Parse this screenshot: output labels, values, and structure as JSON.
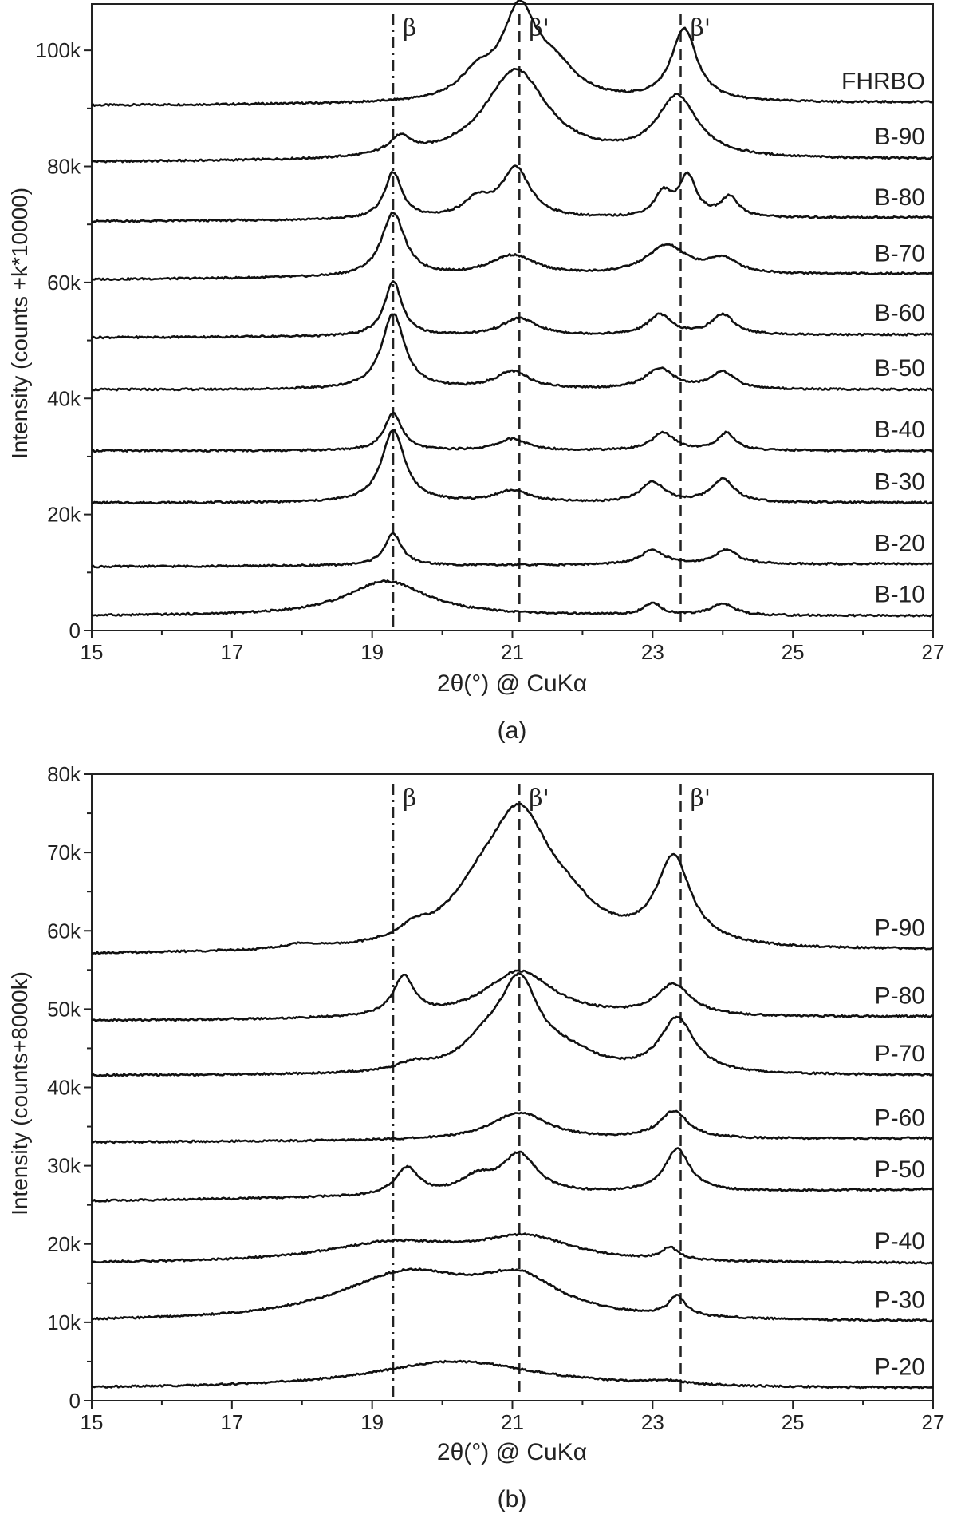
{
  "chart_data": [
    {
      "type": "line",
      "panel_label": "(a)",
      "xlabel": "2θ(°) @ CuKα",
      "ylabel": "Intensity (counts +k*10000)",
      "xlim": [
        15,
        27
      ],
      "ylim": [
        0,
        108000
      ],
      "x_ticks": [
        15,
        17,
        19,
        21,
        23,
        25,
        27
      ],
      "y_ticks": [
        0,
        20000,
        40000,
        60000,
        80000,
        100000
      ],
      "y_tick_labels": [
        "0",
        "20k",
        "40k",
        "60k",
        "80k",
        "100k"
      ],
      "grid": false,
      "reference_lines": [
        {
          "x": 19.3,
          "style": "dashdot",
          "label": "β"
        },
        {
          "x": 21.1,
          "style": "dashed",
          "label": "β'"
        },
        {
          "x": 23.4,
          "style": "dashed",
          "label": "β'"
        }
      ],
      "series": [
        {
          "name": "FHRBO",
          "baseline": 90500,
          "end": 91000,
          "slope": 0,
          "peaks": [
            [
              20.5,
              4000,
              0.3
            ],
            [
              21.1,
              15000,
              0.3
            ],
            [
              21.6,
              5000,
              0.4
            ],
            [
              23.45,
              12500,
              0.22
            ]
          ]
        },
        {
          "name": "B-90",
          "baseline": 80700,
          "end": 81200,
          "slope": 0,
          "peaks": [
            [
              19.4,
              3000,
              0.2
            ],
            [
              21.05,
              15500,
              0.55
            ],
            [
              23.35,
              10500,
              0.35
            ]
          ]
        },
        {
          "name": "B-80",
          "baseline": 70500,
          "end": 71200,
          "slope": 0,
          "peaks": [
            [
              19.3,
              8000,
              0.15
            ],
            [
              20.5,
              3000,
              0.25
            ],
            [
              21.05,
              8500,
              0.25
            ],
            [
              23.15,
              4000,
              0.15
            ],
            [
              23.5,
              7000,
              0.15
            ],
            [
              24.1,
              3500,
              0.15
            ]
          ]
        },
        {
          "name": "B-70",
          "baseline": 60500,
          "end": 61500,
          "slope": 0,
          "peaks": [
            [
              19.3,
              11000,
              0.2
            ],
            [
              21.0,
              3500,
              0.4
            ],
            [
              23.2,
              5000,
              0.35
            ],
            [
              24.0,
              2500,
              0.25
            ]
          ]
        },
        {
          "name": "B-60",
          "baseline": 50500,
          "end": 51000,
          "slope": 0,
          "peaks": [
            [
              19.3,
              9500,
              0.15
            ],
            [
              21.1,
              3000,
              0.3
            ],
            [
              23.1,
              3500,
              0.2
            ],
            [
              24.0,
              3500,
              0.2
            ]
          ]
        },
        {
          "name": "B-50",
          "baseline": 41500,
          "end": 41500,
          "slope": 0,
          "peaks": [
            [
              19.3,
              13000,
              0.2
            ],
            [
              21.0,
              3000,
              0.3
            ],
            [
              23.1,
              3500,
              0.25
            ],
            [
              24.0,
              3000,
              0.2
            ]
          ]
        },
        {
          "name": "B-40",
          "baseline": 31000,
          "end": 31000,
          "slope": 0,
          "peaks": [
            [
              19.3,
              6500,
              0.15
            ],
            [
              21.0,
              2000,
              0.25
            ],
            [
              23.15,
              3000,
              0.2
            ],
            [
              24.05,
              3000,
              0.15
            ]
          ]
        },
        {
          "name": "B-30",
          "baseline": 22000,
          "end": 22000,
          "slope": 0,
          "peaks": [
            [
              19.3,
              12500,
              0.2
            ],
            [
              21.0,
              2000,
              0.3
            ],
            [
              23.0,
              3500,
              0.2
            ],
            [
              24.0,
              4000,
              0.2
            ]
          ]
        },
        {
          "name": "B-20",
          "baseline": 11000,
          "end": 11500,
          "slope": 0,
          "peaks": [
            [
              19.3,
              5500,
              0.15
            ],
            [
              23.0,
              2500,
              0.2
            ],
            [
              24.05,
              2500,
              0.2
            ]
          ]
        },
        {
          "name": "B-10",
          "baseline": 2500,
          "end": 2500,
          "slope": 0,
          "peaks": [
            [
              19.2,
              6000,
              0.7
            ],
            [
              23.0,
              2000,
              0.15
            ],
            [
              24.0,
              2000,
              0.2
            ]
          ]
        }
      ]
    },
    {
      "type": "line",
      "panel_label": "(b)",
      "xlabel": "2θ(°) @ CuKα",
      "ylabel": "Intensity (counts+8000k)",
      "xlim": [
        15,
        27
      ],
      "ylim": [
        0,
        80000
      ],
      "x_ticks": [
        15,
        17,
        19,
        21,
        23,
        25,
        27
      ],
      "y_ticks": [
        0,
        10000,
        20000,
        30000,
        40000,
        50000,
        60000,
        70000,
        80000
      ],
      "y_tick_labels": [
        "0",
        "10k",
        "20k",
        "30k",
        "40k",
        "50k",
        "60k",
        "70k",
        "80k"
      ],
      "grid": false,
      "reference_lines": [
        {
          "x": 19.3,
          "style": "dashdot",
          "label": "β"
        },
        {
          "x": 21.1,
          "style": "dashed",
          "label": "β'"
        },
        {
          "x": 23.4,
          "style": "dashed",
          "label": "β'"
        }
      ],
      "series": [
        {
          "name": "P-90",
          "baseline": 57000,
          "end": 57500,
          "slope": 0,
          "peaks": [
            [
              18.0,
              600,
              0.3
            ],
            [
              19.6,
              1500,
              0.25
            ],
            [
              20.5,
              4000,
              0.5
            ],
            [
              21.1,
              16000,
              0.55
            ],
            [
              21.8,
              3000,
              0.5
            ],
            [
              23.3,
              11000,
              0.3
            ]
          ]
        },
        {
          "name": "P-80",
          "baseline": 48500,
          "end": 49000,
          "slope": 0,
          "peaks": [
            [
              19.45,
              5000,
              0.18
            ],
            [
              21.1,
              6000,
              0.6
            ],
            [
              23.3,
              4000,
              0.3
            ]
          ]
        },
        {
          "name": "P-70",
          "baseline": 41500,
          "end": 41500,
          "slope": 0,
          "peaks": [
            [
              19.6,
              1000,
              0.3
            ],
            [
              20.6,
              3000,
              0.4
            ],
            [
              21.1,
              11000,
              0.35
            ],
            [
              21.8,
              2000,
              0.5
            ],
            [
              23.35,
              7000,
              0.3
            ]
          ]
        },
        {
          "name": "P-60",
          "baseline": 33000,
          "end": 33500,
          "slope": 0,
          "peaks": [
            [
              21.1,
              3500,
              0.5
            ],
            [
              23.3,
              3500,
              0.25
            ]
          ]
        },
        {
          "name": "P-50",
          "baseline": 25500,
          "end": 27000,
          "slope": 0,
          "peaks": [
            [
              19.5,
              3500,
              0.2
            ],
            [
              20.5,
              2000,
              0.3
            ],
            [
              21.1,
              5000,
              0.3
            ],
            [
              23.35,
              5500,
              0.22
            ]
          ]
        },
        {
          "name": "P-40",
          "baseline": 17500,
          "end": 17500,
          "slope": 0,
          "peaks": [
            [
              19.3,
              2500,
              1.2
            ],
            [
              21.2,
              3000,
              0.8
            ],
            [
              23.25,
              1500,
              0.15
            ]
          ]
        },
        {
          "name": "P-30",
          "baseline": 10000,
          "end": 10000,
          "slope": 0,
          "peaks": [
            [
              19.5,
              6000,
              1.2
            ],
            [
              21.1,
              4500,
              0.7
            ],
            [
              23.35,
              2500,
              0.15
            ]
          ]
        },
        {
          "name": "P-20",
          "baseline": 1500,
          "end": 1500,
          "slope": 0,
          "peaks": [
            [
              20.2,
              3500,
              1.5
            ],
            [
              23.2,
              500,
              0.3
            ]
          ]
        }
      ]
    }
  ]
}
